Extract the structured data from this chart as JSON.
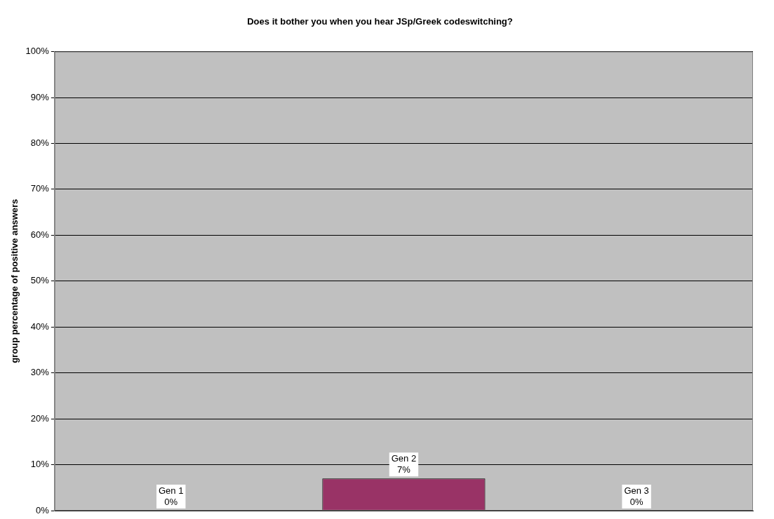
{
  "chart_data": {
    "type": "bar",
    "title": "Does it bother you when you hear JSp/Greek codeswitching?",
    "ylabel": "group percentage of positive answers",
    "categories": [
      "Gen 1",
      "Gen 2",
      "Gen 3"
    ],
    "values": [
      0,
      7,
      0
    ],
    "color": "#993366",
    "value_labels": [
      "0%",
      "7%",
      "0%"
    ],
    "ylim": [
      0,
      100
    ],
    "yticks": [
      {
        "value": 0,
        "label": "0%"
      },
      {
        "value": 10,
        "label": "10%"
      },
      {
        "value": 20,
        "label": "20%"
      },
      {
        "value": 30,
        "label": "30%"
      },
      {
        "value": 40,
        "label": "40%"
      },
      {
        "value": 50,
        "label": "50%"
      },
      {
        "value": 60,
        "label": "60%"
      },
      {
        "value": 70,
        "label": "70%"
      },
      {
        "value": 80,
        "label": "80%"
      },
      {
        "value": 90,
        "label": "90%"
      },
      {
        "value": 100,
        "label": "100%"
      }
    ],
    "grid": "y",
    "legend": false,
    "tick_labels": "y"
  }
}
